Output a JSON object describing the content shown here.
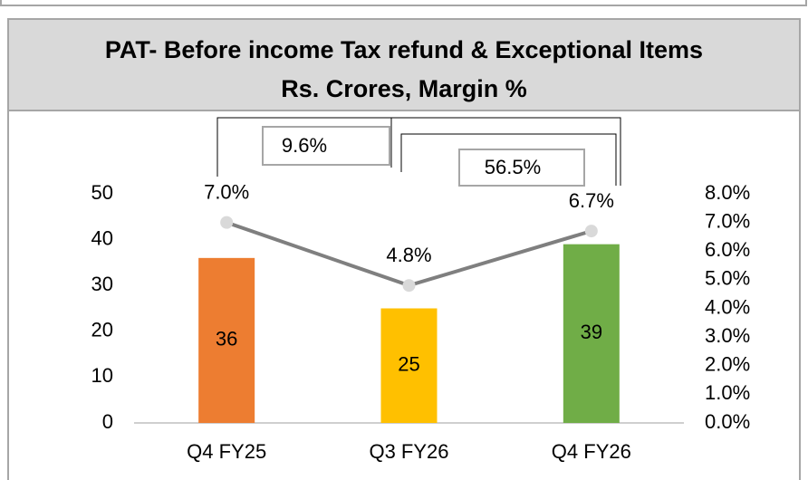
{
  "chart_data": {
    "type": "bar_line",
    "title": "PAT- Before income Tax refund & Exceptional Items",
    "subtitle": "Rs. Crores, Margin %",
    "categories": [
      "Q4 FY25",
      "Q3 FY26",
      "Q4 FY26"
    ],
    "series": [
      {
        "type": "bar",
        "colors": [
          "#ED7D31",
          "#FFC000",
          "#70AD47"
        ],
        "values": [
          36,
          25,
          39
        ]
      },
      {
        "type": "line",
        "axis": "y2",
        "color": "#7F7F7F",
        "marker_color": "#D9D9D9",
        "values": [
          7.0,
          4.8,
          6.7
        ],
        "value_labels": [
          "7.0%",
          "4.8%",
          "6.7%"
        ]
      }
    ],
    "annotations": [
      {
        "text": "9.6%"
      },
      {
        "text": "56.5%"
      }
    ],
    "ylim": [
      0,
      50
    ],
    "yticks": [
      0,
      10,
      20,
      30,
      40,
      50
    ],
    "y2lim": [
      0,
      8
    ],
    "y2ticks": [
      {
        "value": 0,
        "label": "0.0%"
      },
      {
        "value": 1,
        "label": "1.0%"
      },
      {
        "value": 2,
        "label": "2.0%"
      },
      {
        "value": 3,
        "label": "3.0%"
      },
      {
        "value": 4,
        "label": "4.0%"
      },
      {
        "value": 5,
        "label": "5.0%"
      },
      {
        "value": 6,
        "label": "6.0%"
      },
      {
        "value": 7,
        "label": "7.0%"
      },
      {
        "value": 8,
        "label": "8.0%"
      }
    ],
    "grid": false
  }
}
